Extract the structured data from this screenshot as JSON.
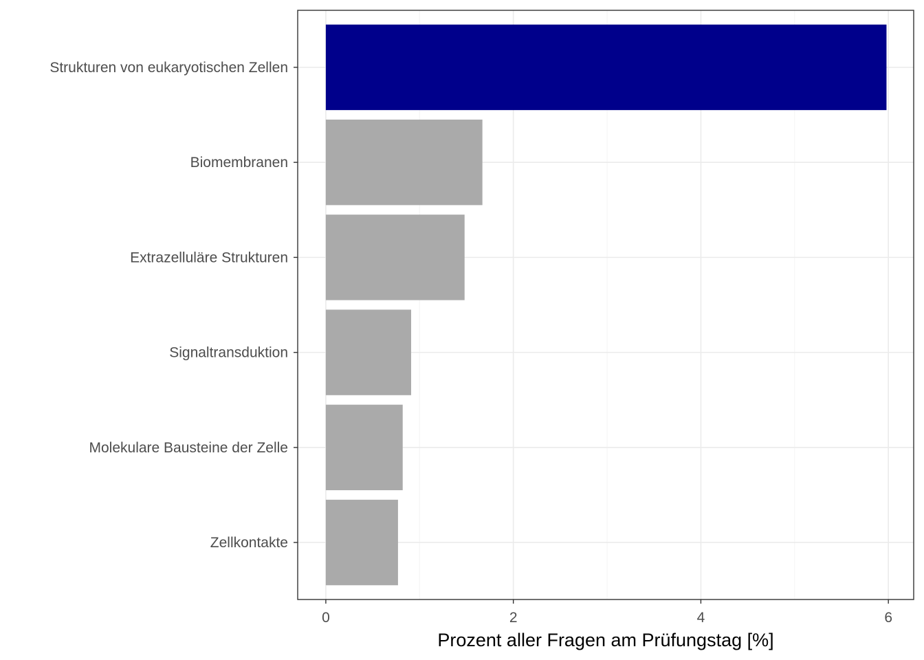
{
  "chart_data": {
    "type": "bar",
    "orientation": "horizontal",
    "categories": [
      "Strukturen von eukaryotischen Zellen",
      "Biomembranen",
      "Extrazelluläre Strukturen",
      "Signaltransduktion",
      "Molekulare Bausteine der Zelle",
      "Zellkontakte"
    ],
    "values": [
      5.98,
      1.67,
      1.48,
      0.91,
      0.82,
      0.77
    ],
    "bar_colors": [
      "#00008b",
      "#aaaaaa",
      "#aaaaaa",
      "#aaaaaa",
      "#aaaaaa",
      "#aaaaaa"
    ],
    "xlabel": "Prozent aller Fragen am Prüfungstag [%]",
    "ylabel": "",
    "xlim": [
      -0.3,
      6.27
    ],
    "xticks": [
      0,
      2,
      4,
      6
    ],
    "xtick_labels": [
      "0",
      "2",
      "4",
      "6"
    ],
    "grid": true,
    "theme": "bw",
    "colors": {
      "highlight": "#00008b",
      "bar": "#aaaaaa",
      "grid_major": "#ebebeb",
      "grid_minor": "#f4f4f4",
      "panel_border": "#333333",
      "tick_text": "#4d4d4d",
      "title_text": "#000000"
    }
  }
}
